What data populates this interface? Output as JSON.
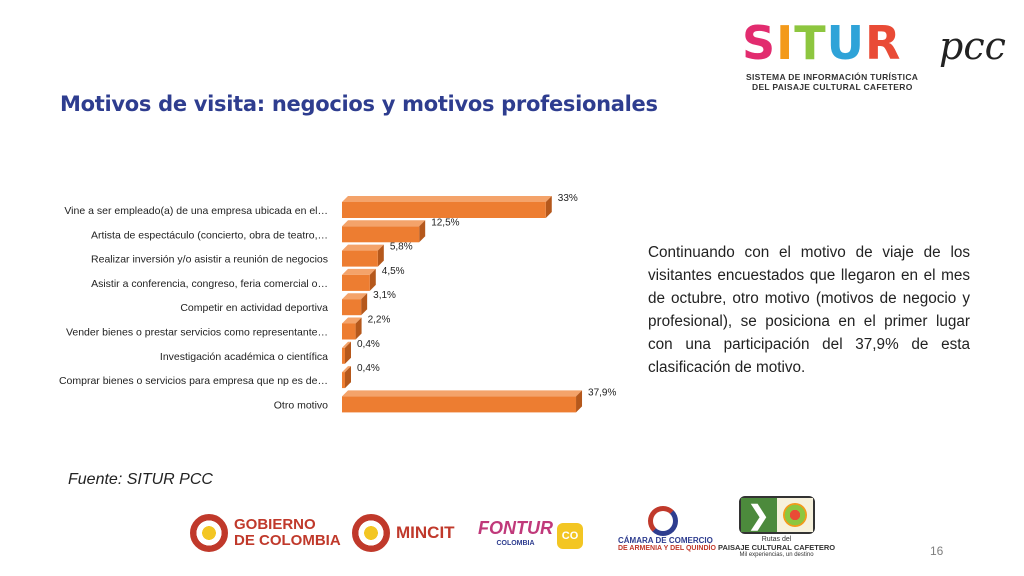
{
  "logo": {
    "word_parts": [
      "S",
      "I",
      "T",
      "U",
      "R"
    ],
    "pcc": "pcc",
    "subtitle_line1": "SISTEMA DE INFORMACIÓN TURÍSTICA",
    "subtitle_line2": "DEL PAISAJE CULTURAL CAFETERO"
  },
  "title": "Motivos de visita: negocios y motivos profesionales",
  "paragraph": "Continuando con el motivo de viaje de los visitantes encuestados que llegaron en el mes de octubre, otro motivo (motivos de negocio y profesional), se posiciona en el primer lugar con una participación del 37,9% de esta clasificación de motivo.",
  "source": "Fuente: SITUR PCC",
  "footer": {
    "gobierno_line1": "GOBIERNO",
    "gobierno_line2": "DE COLOMBIA",
    "mincit": "MINCIT",
    "fontur": "FONTUR",
    "fontur_sub": "COLOMBIA",
    "fontur_badge": "CO",
    "camara_line1": "CÁMARA DE COMERCIO",
    "camara_line2": "DE ARMENIA Y DEL QUINDÍO",
    "rutas_line1": "Rutas del",
    "rutas_line2": "PAISAJE CULTURAL CAFETERO",
    "rutas_line3": "Mil experiencias, un destino"
  },
  "page_number": "16",
  "colors": {
    "bar": "#ed7d31",
    "bar_side": "#b5581c",
    "bar_top": "#f4a36a",
    "title": "#2e3d8f"
  },
  "chart_data": {
    "type": "bar",
    "orientation": "horizontal",
    "categories": [
      "Vine a ser empleado(a) de una empresa ubicada en el…",
      "Artista de espectáculo (concierto, obra de teatro,…",
      "Realizar inversión y/o asistir a reunión de negocios",
      "Asistir a conferencia, congreso, feria comercial o…",
      "Competir en actividad deportiva",
      "Vender bienes o prestar servicios como representante…",
      "Investigación académica o científica",
      "Comprar bienes o servicios para empresa que np es de…",
      "Otro motivo"
    ],
    "values": [
      33,
      12.5,
      5.8,
      4.5,
      3.1,
      2.2,
      0.4,
      0.4,
      37.9
    ],
    "value_labels": [
      "33%",
      "12,5%",
      "5,8%",
      "4,5%",
      "3,1%",
      "2,2%",
      "0,4%",
      "0,4%",
      "37,9%"
    ],
    "xlim": [
      0,
      40
    ],
    "grid": false,
    "legend": "none"
  }
}
